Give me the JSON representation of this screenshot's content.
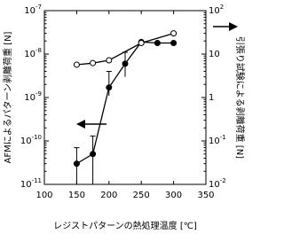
{
  "chart_data": {
    "type": "line",
    "x_label": "レジストパターンの熱処理温度 [℃]",
    "y_label": "AFMによるパターン剥離荷重 [N]",
    "y2_label": "引張り試験による剥離荷重 [N]",
    "xlim": [
      100,
      350
    ],
    "xticks": [
      100,
      150,
      200,
      250,
      300,
      350
    ],
    "ylim": [
      1e-11,
      1e-07
    ],
    "y_scale": "log",
    "yticks": [
      {
        "value": 1e-11,
        "label": "10",
        "exponent": "-11"
      },
      {
        "value": 1e-10,
        "label": "10",
        "exponent": "-10"
      },
      {
        "value": 1e-09,
        "label": "10",
        "exponent": "-9"
      },
      {
        "value": 1e-08,
        "label": "10",
        "exponent": "-8"
      },
      {
        "value": 1e-07,
        "label": "10",
        "exponent": "-7"
      }
    ],
    "y2lim": [
      0.01,
      100
    ],
    "y2_scale": "log",
    "y2ticks": [
      {
        "value": 0.01,
        "label": "10",
        "exponent": "-2"
      },
      {
        "value": 0.1,
        "label": "10",
        "exponent": "-1"
      },
      1,
      10,
      {
        "value": 100,
        "label": "10",
        "exponent": "2"
      }
    ],
    "series": [
      {
        "marker": "filled",
        "color": "#000000",
        "x": [
          150,
          175,
          200,
          225,
          250,
          275,
          300
        ],
        "values": [
          3e-11,
          5e-11,
          1.7e-09,
          6e-09,
          1.9e-08,
          1.8e-08,
          1.8e-08
        ],
        "error_lower": [
          1e-11,
          1e-11,
          1.1e-09,
          3e-09,
          null,
          null,
          null
        ],
        "error_upper": [
          7e-11,
          1.3e-10,
          4e-09,
          1.1e-08,
          null,
          null,
          null
        ]
      },
      {
        "marker": "open",
        "color": "#000000",
        "axis": "y2",
        "x": [
          150,
          175,
          200,
          250,
          300
        ],
        "values": [
          5.7,
          6.2,
          7.2,
          18,
          30
        ]
      }
    ]
  }
}
